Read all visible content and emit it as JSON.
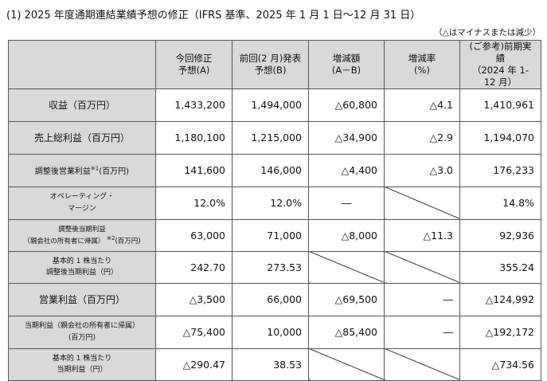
{
  "title": "(1) 2025 年度通期連結業績予想の修正（IFRS 基準、2025 年 1 月 1 日～12 月 31 日）",
  "note": "（△はマイナスまたは減少）",
  "headers": {
    "col_a": [
      "今回修正",
      "予想(A)"
    ],
    "col_b": [
      "前回(2 月)発表",
      "予想(B)"
    ],
    "col_diff": [
      "増減額",
      "(A－B)"
    ],
    "col_rate": [
      "増減率",
      "(%)"
    ],
    "col_prev": [
      "(ご参考)前期実績",
      "（2024 年 1-12 月）"
    ]
  },
  "rows": [
    {
      "label": [
        "収益（百万円）"
      ],
      "a": "1,433,200",
      "b": "1,494,000",
      "diff": "△60,800",
      "rate": "△4.1",
      "prev": "1,410,961"
    },
    {
      "label": [
        "売上総利益（百万円）"
      ],
      "a": "1,180,100",
      "b": "1,215,000",
      "diff": "△34,900",
      "rate": "△2.9",
      "prev": "1,194,070"
    },
    {
      "label": [
        "調整後営業利益",
        "(百万円)"
      ],
      "sup": "※1",
      "a": "141,600",
      "b": "146,000",
      "diff": "△4,400",
      "rate": "△3.0",
      "prev": "176,233"
    },
    {
      "label": [
        "オペレーティング・",
        "マージン"
      ],
      "a": "12.0%",
      "b": "12.0%",
      "diff": "―",
      "rate": "",
      "prev": "14.8%"
    },
    {
      "label": [
        "調整後当期利益",
        "（親会社の所有者に帰属）",
        "(百万円)"
      ],
      "sup": "※2",
      "a": "63,000",
      "b": "71,000",
      "diff": "△8,000",
      "rate": "△11.3",
      "prev": "92,936"
    },
    {
      "label": [
        "基本的 1 株当たり",
        "調整後当期利益（円）"
      ],
      "a": "242.70",
      "b": "273.53",
      "diff": "",
      "rate": "",
      "prev": "355.24"
    },
    {
      "label": [
        "営業利益（百万円）"
      ],
      "a": "△3,500",
      "b": "66,000",
      "diff": "△69,500",
      "rate": "―",
      "prev": "△124,992"
    },
    {
      "label": [
        "当期利益（親会社の所有者に帰属）",
        "(百万円)"
      ],
      "a": "△75,400",
      "b": "10,000",
      "diff": "△85,400",
      "rate": "―",
      "prev": "△192,172"
    },
    {
      "label": [
        "基本的 1 株当たり",
        "当期利益（円）"
      ],
      "a": "△290.47",
      "b": "38.53",
      "diff": "",
      "rate": "",
      "prev": "△734.56"
    }
  ]
}
